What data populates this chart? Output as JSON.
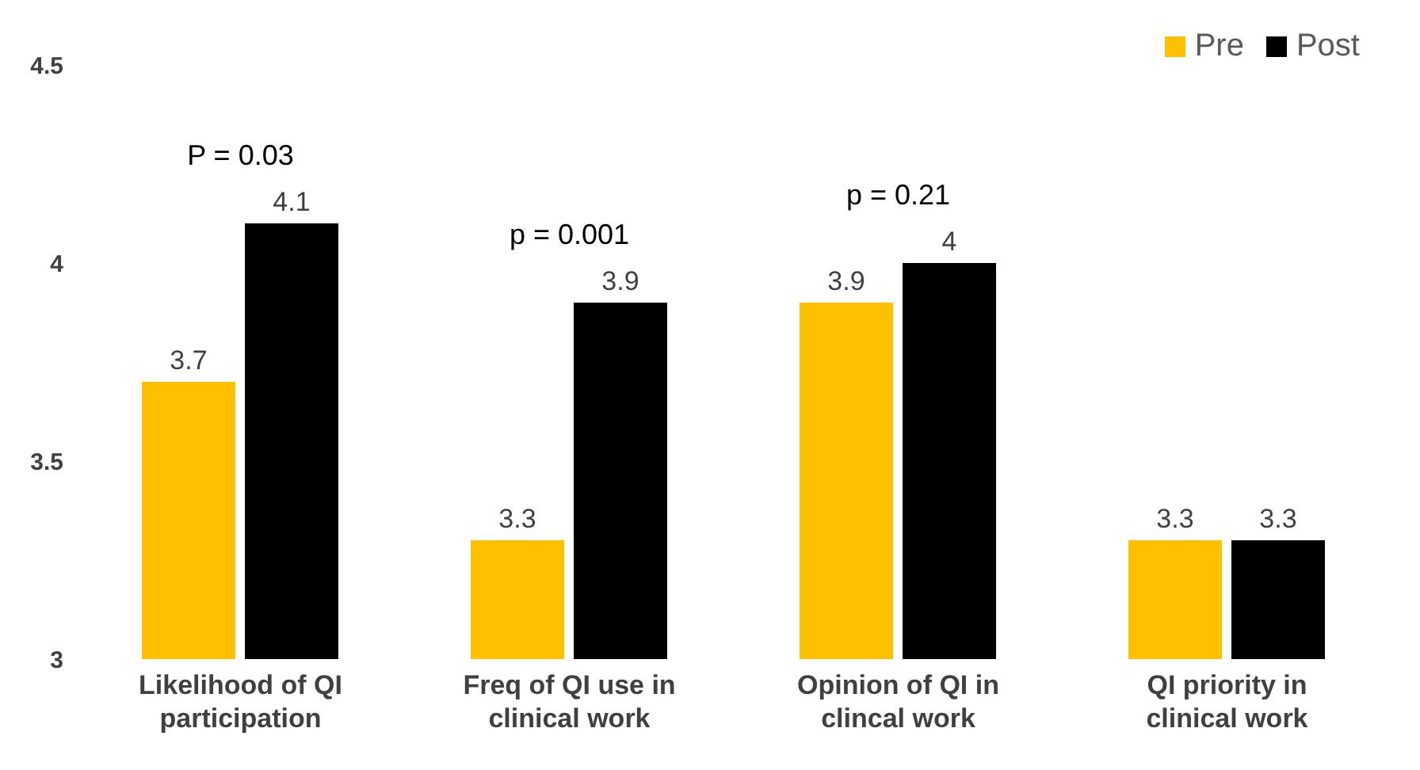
{
  "chart_data": {
    "type": "bar",
    "categories": [
      "Likelihood of QI participation",
      "Freq of QI use in clinical work",
      "Opinion of QI in clincal work",
      "QI priority in clinical work"
    ],
    "series": [
      {
        "name": "Pre",
        "color": "#ffc000",
        "values": [
          3.7,
          3.3,
          3.9,
          3.3
        ]
      },
      {
        "name": "Post",
        "color": "#000000",
        "values": [
          4.1,
          3.9,
          4,
          3.3
        ]
      }
    ],
    "ylim": [
      3,
      4.5
    ],
    "yticks": [
      3,
      3.5,
      4,
      4.5
    ],
    "grid": false,
    "legend": "top right",
    "data_labels": true,
    "annotations": [
      "P = 0.03",
      "p = 0.001",
      "p = 0.21"
    ]
  }
}
